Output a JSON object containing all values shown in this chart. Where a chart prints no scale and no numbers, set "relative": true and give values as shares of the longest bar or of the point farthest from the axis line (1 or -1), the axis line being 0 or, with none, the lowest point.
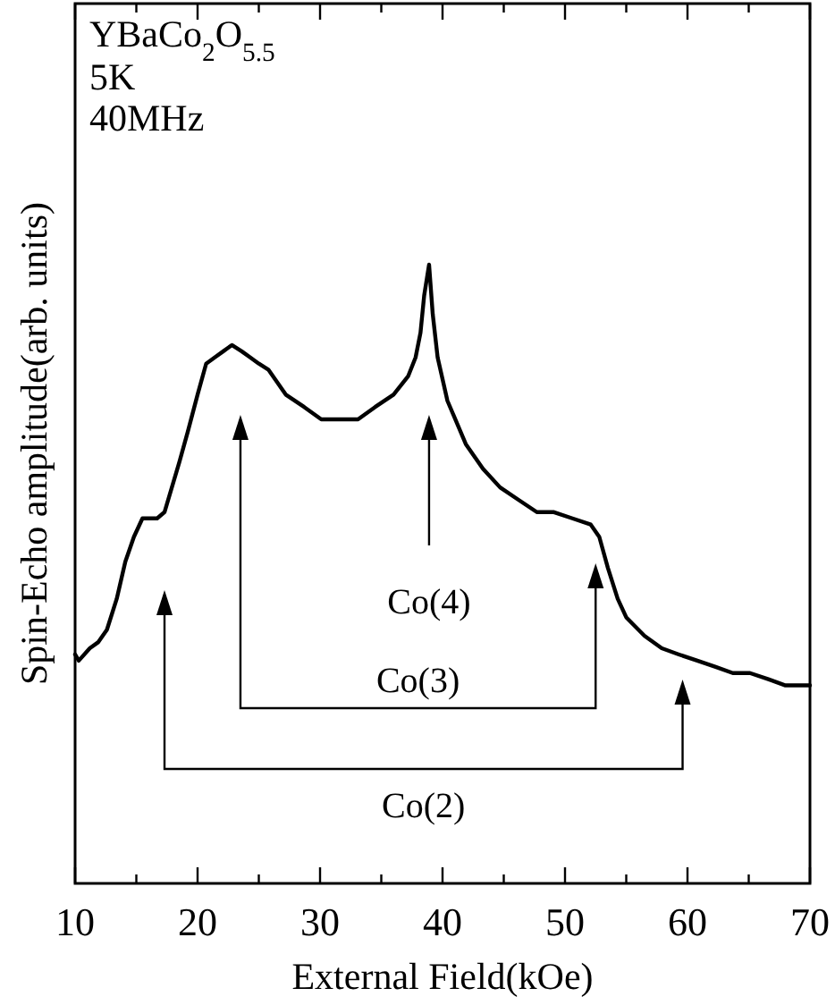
{
  "chart_data": {
    "type": "line",
    "title": "YBaCo$_{2}$O$_{5.5}$",
    "xlabel": "External Field(kOe)",
    "ylabel": "Spin-Echo amplitude(arb. units)",
    "relative": true,
    "annotations": [
      "5K",
      "40MHz",
      "Co(4)",
      "Co(3)",
      "Co(2)"
    ],
    "xlim": [
      10,
      70
    ],
    "xticks": [
      10,
      {
        "value": 15,
        "label": null
      },
      20,
      {
        "value": 25,
        "label": null
      },
      30,
      {
        "value": 35,
        "label": null
      },
      40,
      {
        "value": 45,
        "label": null
      },
      50,
      {
        "value": 55,
        "label": null
      },
      60,
      {
        "value": 65,
        "label": null
      },
      70
    ],
    "x": [
      10,
      10.3,
      11.2,
      11.9,
      12.6,
      13.4,
      14.1,
      14.8,
      15.5,
      16.7,
      17.3,
      18.5,
      19.2,
      20,
      20.7,
      21.4,
      22.1,
      22.8,
      23.6,
      24.3,
      25,
      25.8,
      27.2,
      28.7,
      30.1,
      31.6,
      33.1,
      34.5,
      36,
      37.2,
      37.8,
      38.2,
      38.5,
      38.9,
      39.2,
      39.6,
      40.4,
      41.9,
      43.3,
      44.7,
      46.2,
      47.7,
      49.1,
      50.6,
      52.1,
      52.8,
      53.5,
      54.3,
      55,
      56.5,
      57.9,
      59.3,
      60.8,
      62.3,
      63.7,
      65.1,
      66.6,
      68,
      70
    ],
    "series": [
      {
        "color": "#000000",
        "values": [
          0.37,
          0.36,
          0.38,
          0.39,
          0.41,
          0.46,
          0.52,
          0.56,
          0.59,
          0.59,
          0.6,
          0.68,
          0.73,
          0.79,
          0.84,
          0.85,
          0.86,
          0.87,
          0.86,
          0.85,
          0.84,
          0.83,
          0.79,
          0.77,
          0.75,
          0.75,
          0.75,
          0.77,
          0.79,
          0.82,
          0.85,
          0.89,
          0.95,
          1,
          0.92,
          0.85,
          0.78,
          0.71,
          0.67,
          0.64,
          0.62,
          0.6,
          0.6,
          0.59,
          0.58,
          0.56,
          0.51,
          0.46,
          0.43,
          0.4,
          0.38,
          0.37,
          0.36,
          0.35,
          0.34,
          0.34,
          0.33,
          0.32,
          0.32
        ]
      }
    ]
  }
}
